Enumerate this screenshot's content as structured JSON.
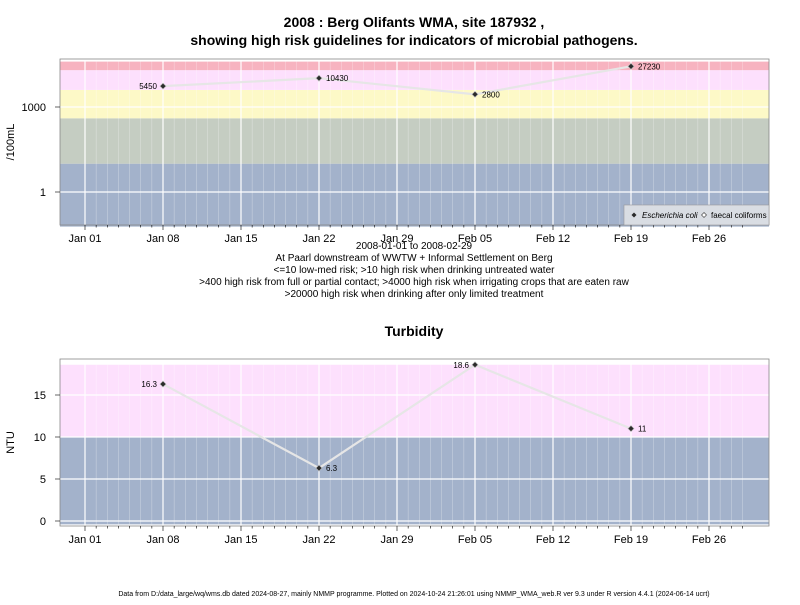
{
  "header": {
    "title_line1": "2008 : Berg Olifants WMA, site 187932 ,",
    "title_line2": "showing high risk guidelines for indicators of microbial pathogens."
  },
  "captions": [
    "2008-01-01 to 2008-02-29",
    "At Paarl downstream of WWTW + Informal Settlement on Berg",
    "<=10 low-med risk; >10 high risk when drinking untreated water",
    ">400 high risk from full or partial contact; >4000 high risk when irrigating crops that are eaten raw",
    ">20000 high risk when drinking after only limited treatment"
  ],
  "footer": "Data from D:/data_large/wq/wms.db dated 2024-08-27, mainly NMMP programme. Plotted on 2024-10-24 21:26:01 using NMMP_WMA_web.R ver 9.3 under R version 4.4.1 (2024-06-14 ucrt)",
  "colors": {
    "band_red": "#f7b3c0",
    "band_pink": "#fde0fd",
    "band_yellow": "#fdf9c7",
    "band_sage": "#c5cdc2",
    "band_blue": "#a3b2cb",
    "line": "#e6e6e6",
    "point": "#2b2b2b"
  },
  "chart_data": [
    {
      "type": "line",
      "title": "",
      "ylabel": "/100mL",
      "yscale": "log",
      "x_tick_labels": [
        "Jan 01",
        "Jan 08",
        "Jan 15",
        "Jan 22",
        "Jan 29",
        "Feb 05",
        "Feb 12",
        "Feb 19",
        "Feb 26"
      ],
      "y_tick_labels": [
        "1",
        "1000"
      ],
      "bands": [
        {
          "from": 0.06,
          "to": 10,
          "color": "band_blue"
        },
        {
          "from": 10,
          "to": 400,
          "color": "band_sage"
        },
        {
          "from": 400,
          "to": 4000,
          "color": "band_yellow"
        },
        {
          "from": 4000,
          "to": 20000,
          "color": "band_pink"
        },
        {
          "from": 20000,
          "to": 40000,
          "color": "band_red"
        }
      ],
      "legend": {
        "position": "bottom-right",
        "entries": [
          "Escherichia coli",
          "faecal coliforms"
        ]
      },
      "series": [
        {
          "name": "Escherichia coli",
          "points": [
            {
              "x": "2008-01-08",
              "y": 5450,
              "label": "5450",
              "anchor": "left"
            },
            {
              "x": "2008-01-22",
              "y": 10430,
              "label": "10430",
              "anchor": "right"
            },
            {
              "x": "2008-02-05",
              "y": 2800,
              "label": "2800",
              "anchor": "right"
            },
            {
              "x": "2008-02-19",
              "y": 27230,
              "label": "27230",
              "anchor": "right"
            }
          ]
        }
      ]
    },
    {
      "type": "line",
      "title": "Turbidity",
      "ylabel": "NTU",
      "ylim": [
        -0.4,
        18.6
      ],
      "x_tick_labels": [
        "Jan 01",
        "Jan 08",
        "Jan 15",
        "Jan 22",
        "Jan 29",
        "Feb 05",
        "Feb 12",
        "Feb 19",
        "Feb 26"
      ],
      "y_ticks": [
        0,
        5,
        10,
        15
      ],
      "bands": [
        {
          "from": -0.4,
          "to": 10,
          "color": "band_blue"
        },
        {
          "from": 10,
          "to": 18.6,
          "color": "band_pink"
        }
      ],
      "series": [
        {
          "points": [
            {
              "x": "2008-01-08",
              "y": 16.3,
              "label": "16.3",
              "anchor": "left"
            },
            {
              "x": "2008-01-22",
              "y": 6.3,
              "label": "6.3",
              "anchor": "right"
            },
            {
              "x": "2008-02-05",
              "y": 18.6,
              "label": "18.6",
              "anchor": "left"
            },
            {
              "x": "2008-02-19",
              "y": 11,
              "label": "11",
              "anchor": "right"
            }
          ]
        }
      ]
    }
  ]
}
